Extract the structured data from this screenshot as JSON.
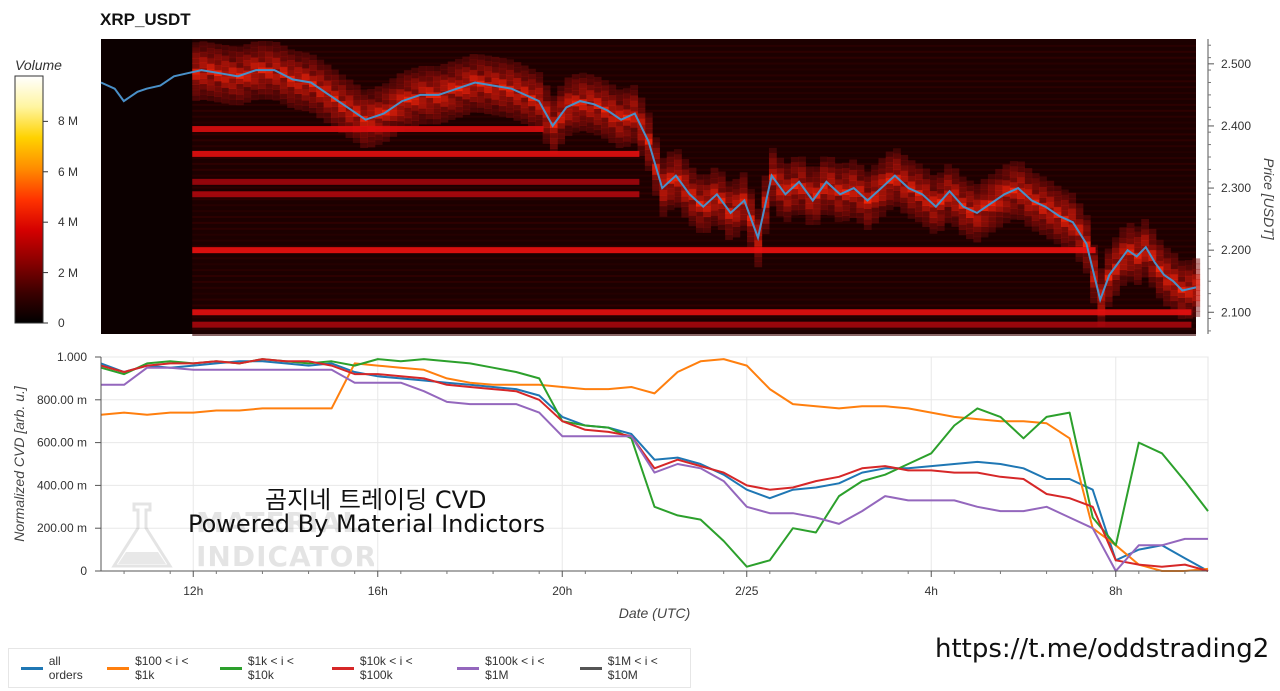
{
  "chart_title": "XRP_USDT",
  "footer_link": "https://t.me/oddstrading2",
  "overlay": {
    "korean_text": "곰지네 트레이딩 CVD",
    "powered_text": "Powered By Material Indictors",
    "watermark_line1": "MATERIAL",
    "watermark_line2": "INDICATORS",
    "watermark_icon": "flask-icon"
  },
  "chart_data": [
    {
      "type": "heatmap",
      "title": "XRP_USDT",
      "ylabel": "Price [USDT]",
      "ylim": [
        2.065,
        2.54
      ],
      "yticks": [
        "2.100",
        "2.200",
        "2.300",
        "2.400",
        "2.500"
      ],
      "ytick_values": [
        2.1,
        2.2,
        2.3,
        2.4,
        2.5
      ],
      "colorbar": {
        "title": "Volume",
        "ticks": [
          "0",
          "2 M",
          "4 M",
          "6 M",
          "8 M"
        ],
        "tick_values": [
          0,
          2000000,
          4000000,
          6000000,
          8000000
        ],
        "max": 9800000,
        "colors": [
          "#000000",
          "#3d0000",
          "#8b0000",
          "#d40000",
          "#ff3300",
          "#ff8c00",
          "#ffd200",
          "#fff5a0",
          "#ffffff"
        ]
      },
      "colors": {
        "background": "#1c0000",
        "empty": "#0c0000",
        "price_line": "#4a90c8"
      },
      "x_hours_range": [
        10.0,
        34.0
      ],
      "empty_until_hour": 12.0,
      "price_line": {
        "hours": [
          10.0,
          10.3,
          10.5,
          10.8,
          11.0,
          11.3,
          11.6,
          11.9,
          12.2,
          12.6,
          13.0,
          13.4,
          13.8,
          14.2,
          14.6,
          15.0,
          15.4,
          15.8,
          16.2,
          16.6,
          17.0,
          17.4,
          17.8,
          18.2,
          18.6,
          19.0,
          19.3,
          19.6,
          19.9,
          20.2,
          20.5,
          20.8,
          21.1,
          21.4,
          21.7,
          22.0,
          22.3,
          22.6,
          22.9,
          23.2,
          23.5,
          23.8,
          24.1,
          24.4,
          24.7,
          25.0,
          25.3,
          25.6,
          25.9,
          26.2,
          26.5,
          26.8,
          27.1,
          27.4,
          27.7,
          28.0,
          28.3,
          28.6,
          28.9,
          29.2,
          29.5,
          29.8,
          30.1,
          30.4,
          30.7,
          31.0,
          31.3,
          31.6,
          31.9,
          32.1,
          32.3,
          32.5,
          32.7,
          32.9,
          33.1,
          33.3,
          33.5,
          33.7,
          34.0
        ],
        "prices": [
          2.47,
          2.46,
          2.44,
          2.455,
          2.46,
          2.465,
          2.48,
          2.485,
          2.49,
          2.485,
          2.48,
          2.49,
          2.49,
          2.475,
          2.47,
          2.45,
          2.43,
          2.41,
          2.42,
          2.44,
          2.45,
          2.45,
          2.46,
          2.47,
          2.465,
          2.46,
          2.45,
          2.44,
          2.4,
          2.43,
          2.44,
          2.435,
          2.425,
          2.41,
          2.42,
          2.375,
          2.3,
          2.32,
          2.29,
          2.27,
          2.29,
          2.26,
          2.28,
          2.22,
          2.32,
          2.29,
          2.31,
          2.28,
          2.31,
          2.29,
          2.3,
          2.28,
          2.3,
          2.32,
          2.3,
          2.29,
          2.27,
          2.295,
          2.27,
          2.26,
          2.275,
          2.29,
          2.3,
          2.28,
          2.27,
          2.255,
          2.245,
          2.21,
          2.12,
          2.16,
          2.18,
          2.2,
          2.19,
          2.205,
          2.18,
          2.16,
          2.15,
          2.135,
          2.14
        ]
      },
      "bands": [
        {
          "price": 2.395,
          "from_hour": 12.0,
          "to_hour": 19.7,
          "strength": 0.7
        },
        {
          "price": 2.355,
          "from_hour": 12.0,
          "to_hour": 21.8,
          "strength": 0.75
        },
        {
          "price": 2.31,
          "from_hour": 12.0,
          "to_hour": 21.8,
          "strength": 0.35
        },
        {
          "price": 2.29,
          "from_hour": 12.0,
          "to_hour": 21.8,
          "strength": 0.45
        },
        {
          "price": 2.2,
          "from_hour": 12.0,
          "to_hour": 31.8,
          "strength": 0.8
        },
        {
          "price": 2.1,
          "from_hour": 12.0,
          "to_hour": 33.9,
          "strength": 0.75
        },
        {
          "price": 2.08,
          "from_hour": 12.0,
          "to_hour": 33.9,
          "strength": 0.4
        }
      ]
    },
    {
      "type": "line",
      "xlabel": "Date (UTC)",
      "ylabel": "Normalized CVD [arb. u.]",
      "ylim": [
        0,
        1.0
      ],
      "yticks": [
        "0",
        "200.00 m",
        "400.00 m",
        "600.00 m",
        "800.00 m",
        "1.000"
      ],
      "ytick_values": [
        0,
        0.2,
        0.4,
        0.6,
        0.8,
        1.0
      ],
      "xticks": [
        "12h",
        "16h",
        "20h",
        "2/25",
        "4h",
        "8h"
      ],
      "xtick_hours": [
        12,
        16,
        20,
        24,
        28,
        32
      ],
      "grid": true,
      "legend_placement": "bottom",
      "x_hours": [
        10.0,
        10.5,
        11.0,
        11.5,
        12.0,
        12.5,
        13.0,
        13.5,
        14.0,
        14.5,
        15.0,
        15.5,
        16.0,
        16.5,
        17.0,
        17.5,
        18.0,
        18.5,
        19.0,
        19.5,
        20.0,
        20.5,
        21.0,
        21.5,
        22.0,
        22.5,
        23.0,
        23.5,
        24.0,
        24.5,
        25.0,
        25.5,
        26.0,
        26.5,
        27.0,
        27.5,
        28.0,
        28.5,
        29.0,
        29.5,
        30.0,
        30.5,
        31.0,
        31.5,
        32.0,
        32.5,
        33.0,
        33.5,
        34.0
      ],
      "series": [
        {
          "name": "all orders",
          "color": "#1f77b4",
          "values": [
            0.97,
            0.93,
            0.96,
            0.95,
            0.96,
            0.97,
            0.98,
            0.98,
            0.97,
            0.96,
            0.97,
            0.93,
            0.91,
            0.9,
            0.89,
            0.88,
            0.87,
            0.86,
            0.85,
            0.82,
            0.72,
            0.68,
            0.67,
            0.64,
            0.52,
            0.53,
            0.5,
            0.45,
            0.38,
            0.34,
            0.38,
            0.39,
            0.41,
            0.46,
            0.48,
            0.48,
            0.49,
            0.5,
            0.51,
            0.5,
            0.48,
            0.43,
            0.43,
            0.38,
            0.05,
            0.1,
            0.12,
            0.06,
            0.0
          ]
        },
        {
          "name": "$100 < i < $1k",
          "color": "#ff7f0e",
          "values": [
            0.73,
            0.74,
            0.73,
            0.74,
            0.74,
            0.75,
            0.75,
            0.76,
            0.76,
            0.76,
            0.76,
            0.97,
            0.96,
            0.95,
            0.94,
            0.9,
            0.88,
            0.87,
            0.87,
            0.87,
            0.86,
            0.85,
            0.85,
            0.86,
            0.83,
            0.93,
            0.98,
            0.99,
            0.96,
            0.85,
            0.78,
            0.77,
            0.76,
            0.77,
            0.77,
            0.76,
            0.74,
            0.72,
            0.71,
            0.7,
            0.7,
            0.69,
            0.62,
            0.2,
            0.12,
            0.03,
            0.0,
            0.0,
            0.01
          ]
        },
        {
          "name": "$1k < i < $10k",
          "color": "#2ca02c",
          "values": [
            0.95,
            0.92,
            0.97,
            0.98,
            0.97,
            0.98,
            0.97,
            0.99,
            0.98,
            0.97,
            0.98,
            0.96,
            0.99,
            0.98,
            0.99,
            0.98,
            0.97,
            0.95,
            0.93,
            0.9,
            0.7,
            0.68,
            0.67,
            0.62,
            0.3,
            0.26,
            0.24,
            0.14,
            0.02,
            0.05,
            0.2,
            0.18,
            0.35,
            0.42,
            0.45,
            0.5,
            0.55,
            0.68,
            0.76,
            0.72,
            0.62,
            0.72,
            0.74,
            0.25,
            0.12,
            0.6,
            0.55,
            0.42,
            0.28
          ]
        },
        {
          "name": "$10k < i < $100k",
          "color": "#d62728",
          "values": [
            0.96,
            0.93,
            0.96,
            0.97,
            0.97,
            0.98,
            0.97,
            0.99,
            0.98,
            0.98,
            0.96,
            0.92,
            0.92,
            0.91,
            0.9,
            0.87,
            0.86,
            0.85,
            0.84,
            0.8,
            0.7,
            0.66,
            0.65,
            0.63,
            0.48,
            0.52,
            0.49,
            0.46,
            0.4,
            0.38,
            0.39,
            0.42,
            0.44,
            0.48,
            0.49,
            0.47,
            0.47,
            0.46,
            0.46,
            0.44,
            0.43,
            0.36,
            0.34,
            0.3,
            0.05,
            0.03,
            0.02,
            0.03,
            0.0
          ]
        },
        {
          "name": "$100k < i < $1M",
          "color": "#9467bd",
          "values": [
            0.87,
            0.87,
            0.95,
            0.95,
            0.94,
            0.94,
            0.94,
            0.94,
            0.94,
            0.94,
            0.94,
            0.88,
            0.88,
            0.88,
            0.84,
            0.79,
            0.78,
            0.78,
            0.78,
            0.74,
            0.63,
            0.63,
            0.63,
            0.63,
            0.46,
            0.5,
            0.48,
            0.42,
            0.3,
            0.27,
            0.27,
            0.25,
            0.22,
            0.28,
            0.35,
            0.33,
            0.33,
            0.33,
            0.3,
            0.28,
            0.28,
            0.3,
            0.25,
            0.2,
            0.0,
            0.12,
            0.12,
            0.15,
            0.15
          ]
        },
        {
          "name": "$1M < i < $10M",
          "color": "#555555",
          "values": []
        }
      ]
    }
  ]
}
